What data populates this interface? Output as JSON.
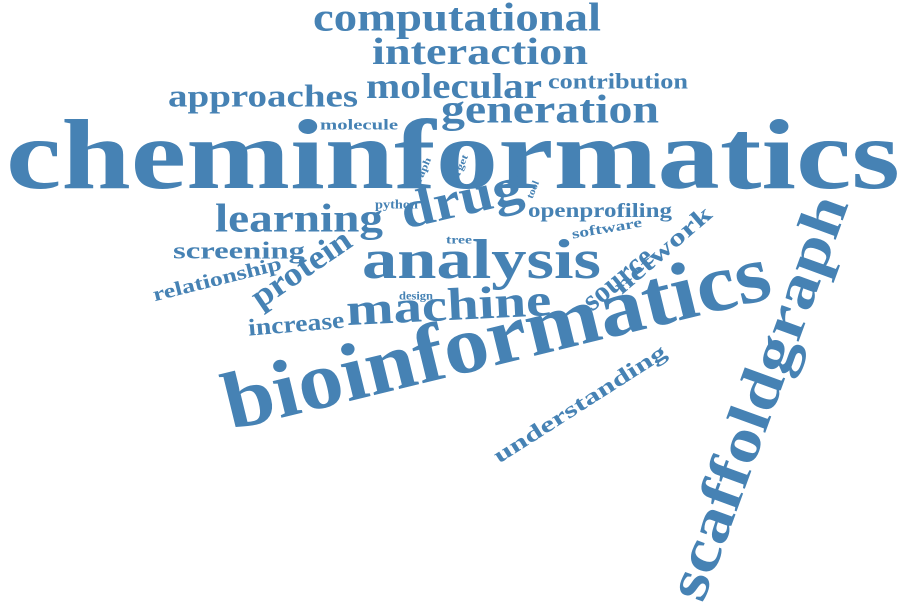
{
  "cloud": {
    "text_color": "#4682b4",
    "background": "#ffffff",
    "words": [
      {
        "text": "cheminformatics"
      },
      {
        "text": "bioinformatics"
      },
      {
        "text": "scaffoldgraph"
      },
      {
        "text": "computational"
      },
      {
        "text": "interaction"
      },
      {
        "text": "molecular"
      },
      {
        "text": "contribution"
      },
      {
        "text": "approaches"
      },
      {
        "text": "generation"
      },
      {
        "text": "molecule"
      },
      {
        "text": "learning"
      },
      {
        "text": "drug"
      },
      {
        "text": "openprofiling"
      },
      {
        "text": "software"
      },
      {
        "text": "screening"
      },
      {
        "text": "analysis"
      },
      {
        "text": "relationship"
      },
      {
        "text": "protein"
      },
      {
        "text": "source"
      },
      {
        "text": "network"
      },
      {
        "text": "increase"
      },
      {
        "text": "machine"
      },
      {
        "text": "understanding"
      },
      {
        "text": "python"
      },
      {
        "text": "tree"
      },
      {
        "text": "design"
      },
      {
        "text": "graph"
      },
      {
        "text": "target"
      },
      {
        "text": "tool"
      }
    ]
  }
}
